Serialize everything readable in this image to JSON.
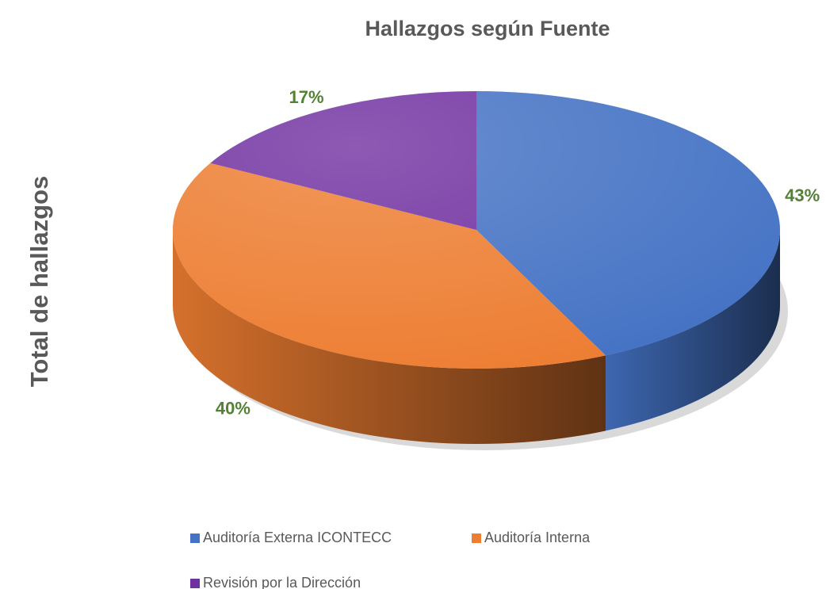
{
  "chart_data": {
    "type": "pie",
    "title": "Hallazgos según Fuente",
    "ylabel": "Total de hallazgos",
    "categories": [
      "Auditoría Externa ICONTECC",
      "Auditoría Interna",
      "Revisión por la Dirección"
    ],
    "values": [
      43,
      40,
      17
    ],
    "value_labels": [
      "43%",
      "40%",
      "17%"
    ],
    "colors": [
      "#4472c4",
      "#ed7d31",
      "#7030a0"
    ],
    "label_color": "#548235"
  }
}
